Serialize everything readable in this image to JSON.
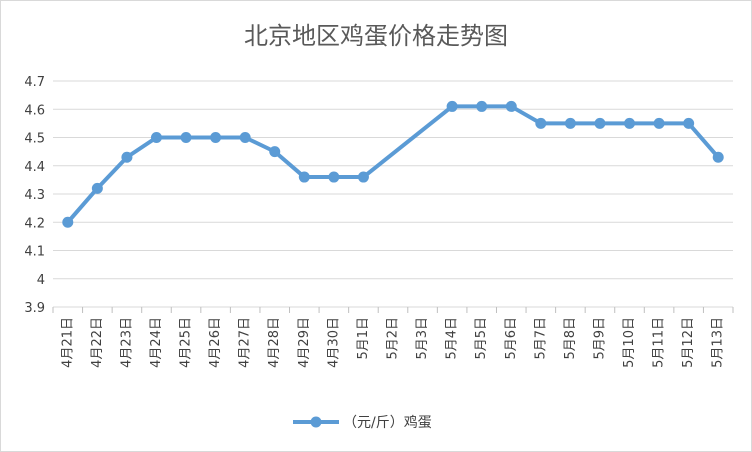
{
  "chart_data": {
    "type": "line",
    "title": "北京地区鸡蛋价格走势图",
    "categories": [
      "4月21日",
      "4月22日",
      "4月23日",
      "4月24日",
      "4月25日",
      "4月26日",
      "4月27日",
      "4月28日",
      "4月29日",
      "4月30日",
      "5月1日",
      "5月2日",
      "5月3日",
      "5月4日",
      "5月5日",
      "5月6日",
      "5月7日",
      "5月8日",
      "5月9日",
      "5月10日",
      "5月11日",
      "5月12日",
      "5月13日"
    ],
    "series": [
      {
        "name": "（元/斤）鸡蛋",
        "color": "#5B9BD5",
        "values": [
          4.2,
          4.32,
          4.43,
          4.5,
          4.5,
          4.5,
          4.5,
          4.45,
          4.36,
          4.36,
          4.36,
          null,
          null,
          4.61,
          4.61,
          4.61,
          4.55,
          4.55,
          4.55,
          4.55,
          4.55,
          4.55,
          4.43
        ]
      }
    ],
    "ylim": [
      3.9,
      4.7
    ],
    "yticks": [
      "3.9",
      "4",
      "4.1",
      "4.2",
      "4.3",
      "4.4",
      "4.5",
      "4.6",
      "4.7"
    ],
    "grid": true,
    "legend": "bottom"
  }
}
